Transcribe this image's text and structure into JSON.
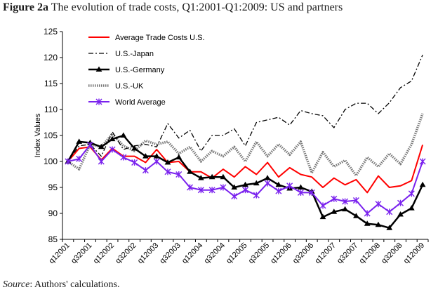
{
  "header": {
    "lead": "Figure 2a",
    "text": "The evolution of trade costs, Q1:2001-Q1:2009: US and partners"
  },
  "footer": {
    "source_label": "Source",
    "source_text": ": Authors' calculations."
  },
  "chart_data": {
    "type": "line",
    "ylabel": "Index Values",
    "ylim": [
      85,
      125
    ],
    "yticks": [
      85,
      90,
      95,
      100,
      105,
      110,
      115,
      120,
      125
    ],
    "grid": false,
    "legend_position": "top-left",
    "categories": [
      "q12001",
      "q22001",
      "q32001",
      "q42001",
      "q12002",
      "q22002",
      "q32002",
      "q42002",
      "q12003",
      "q22003",
      "q32003",
      "q42003",
      "q12004",
      "q22004",
      "q32004",
      "q42004",
      "q12005",
      "q22005",
      "q32005",
      "q42005",
      "q12006",
      "q22006",
      "q32006",
      "q42006",
      "q12007",
      "q22007",
      "q32007",
      "q42007",
      "q12008",
      "q22008",
      "q32008",
      "q42008",
      "q12009"
    ],
    "x_tick_labels": [
      "q12001",
      "q32001",
      "q12002",
      "q32002",
      "q12003",
      "q32003",
      "q12004",
      "q32004",
      "q12005",
      "q32005",
      "q12006",
      "q32006",
      "q12007",
      "q32007",
      "q12008",
      "q32008",
      "q12009"
    ],
    "series": [
      {
        "name": "Average Trade Costs U.S.",
        "color": "#ff0000",
        "style": "solid",
        "values": [
          100,
          102.5,
          102.8,
          100.3,
          102.5,
          101.0,
          101.0,
          99.8,
          102.3,
          99.8,
          100.0,
          98.0,
          98.0,
          96.8,
          98.5,
          97.0,
          99.0,
          97.5,
          99.8,
          97.0,
          98.8,
          97.5,
          97.0,
          95.0,
          96.8,
          95.5,
          96.5,
          94.0,
          97.2,
          95.0,
          95.3,
          96.3,
          103.2
        ]
      },
      {
        "name": "U.S.-Japan",
        "color": "#000000",
        "style": "dashdot",
        "values": [
          100,
          103.0,
          103.3,
          101.0,
          105.7,
          102.3,
          103.0,
          103.3,
          102.8,
          107.3,
          104.5,
          106.0,
          102.0,
          105.0,
          105.0,
          106.3,
          103.0,
          107.5,
          108.0,
          108.5,
          107.0,
          109.8,
          109.2,
          108.8,
          106.5,
          110.0,
          111.2,
          111.2,
          109.2,
          111.3,
          114.2,
          115.5,
          120.5
        ]
      },
      {
        "name": "U.S.-Germany",
        "color": "#000000",
        "style": "solid-triangle",
        "values": [
          100,
          103.8,
          103.6,
          102.8,
          104.3,
          105.0,
          102.5,
          101.0,
          101.0,
          99.8,
          100.8,
          98.0,
          96.8,
          97.0,
          97.0,
          95.0,
          95.5,
          95.8,
          96.8,
          95.5,
          94.8,
          95.0,
          94.2,
          89.3,
          90.3,
          90.8,
          89.5,
          88.0,
          87.8,
          87.2,
          89.8,
          91.0,
          95.5
        ]
      },
      {
        "name": "U.S.-UK",
        "color": "#777777",
        "style": "thick-dotted",
        "values": [
          100,
          98.5,
          103.3,
          102.8,
          105.3,
          103.0,
          102.0,
          104.0,
          103.3,
          103.8,
          101.5,
          102.8,
          100.0,
          102.0,
          101.0,
          102.8,
          100.0,
          103.8,
          101.0,
          103.3,
          101.3,
          103.8,
          97.8,
          101.8,
          99.0,
          100.2,
          97.3,
          100.8,
          99.0,
          101.5,
          99.5,
          103.3,
          109.2
        ]
      },
      {
        "name": "World Average",
        "color": "#7a22ee",
        "style": "solid-star",
        "values": [
          100,
          100.5,
          103.2,
          100.0,
          102.3,
          100.8,
          99.8,
          98.3,
          100.0,
          98.0,
          97.5,
          95.0,
          94.5,
          94.5,
          95.0,
          93.3,
          94.5,
          93.5,
          95.8,
          94.3,
          95.3,
          94.0,
          94.0,
          91.5,
          92.8,
          92.3,
          92.5,
          90.0,
          91.8,
          90.3,
          92.0,
          93.8,
          100.0
        ]
      }
    ]
  }
}
